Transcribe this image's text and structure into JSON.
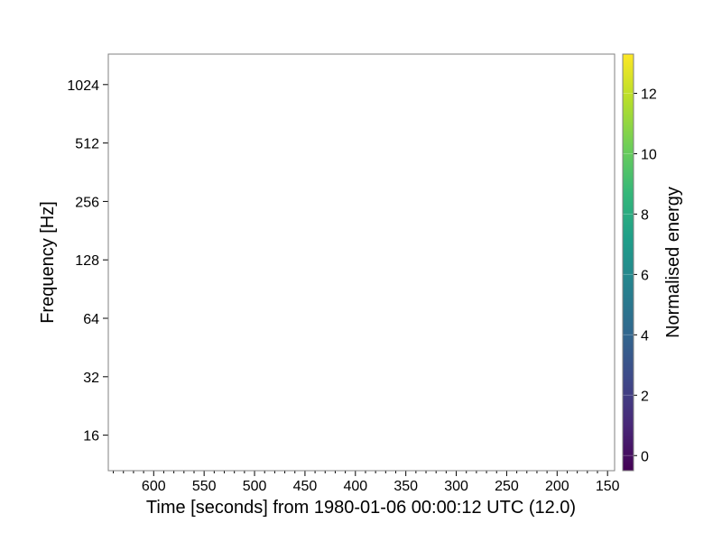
{
  "chart_data": {
    "type": "heatmap",
    "title": "",
    "xlabel": "Time [seconds] from 1980-01-06 00:00:12 UTC (12.0)",
    "ylabel": "Frequency [Hz]",
    "xlim": [
      645,
      143
    ],
    "x_inverted": true,
    "x_ticks": [
      600,
      550,
      500,
      450,
      400,
      350,
      300,
      250,
      200,
      150
    ],
    "x_tick_labels": [
      "600",
      "550",
      "500",
      "450",
      "400",
      "350",
      "300",
      "250",
      "200",
      "150"
    ],
    "yscale": "log2",
    "ylim": [
      10.5,
      1470
    ],
    "y_ticks": [
      16,
      32,
      64,
      128,
      256,
      512,
      1024
    ],
    "y_tick_labels": [
      "16",
      "32",
      "64",
      "128",
      "256",
      "512",
      "1024"
    ],
    "grid": false,
    "values": [],
    "colorbar": {
      "label": "Normalised energy",
      "colormap": "viridis",
      "range": [
        -0.5,
        13.3
      ],
      "ticks": [
        0,
        2,
        4,
        6,
        8,
        10,
        12
      ],
      "tick_labels": [
        "0",
        "2",
        "4",
        "6",
        "8",
        "10",
        "12"
      ]
    }
  },
  "colors": {
    "plot_background": "#ffffff",
    "axes_edge": "#808080",
    "viridis_stops": [
      "#440154",
      "#482878",
      "#3e4a89",
      "#31688e",
      "#26828e",
      "#1f9e89",
      "#35b779",
      "#6ece58",
      "#b5de2b",
      "#fde725"
    ]
  }
}
